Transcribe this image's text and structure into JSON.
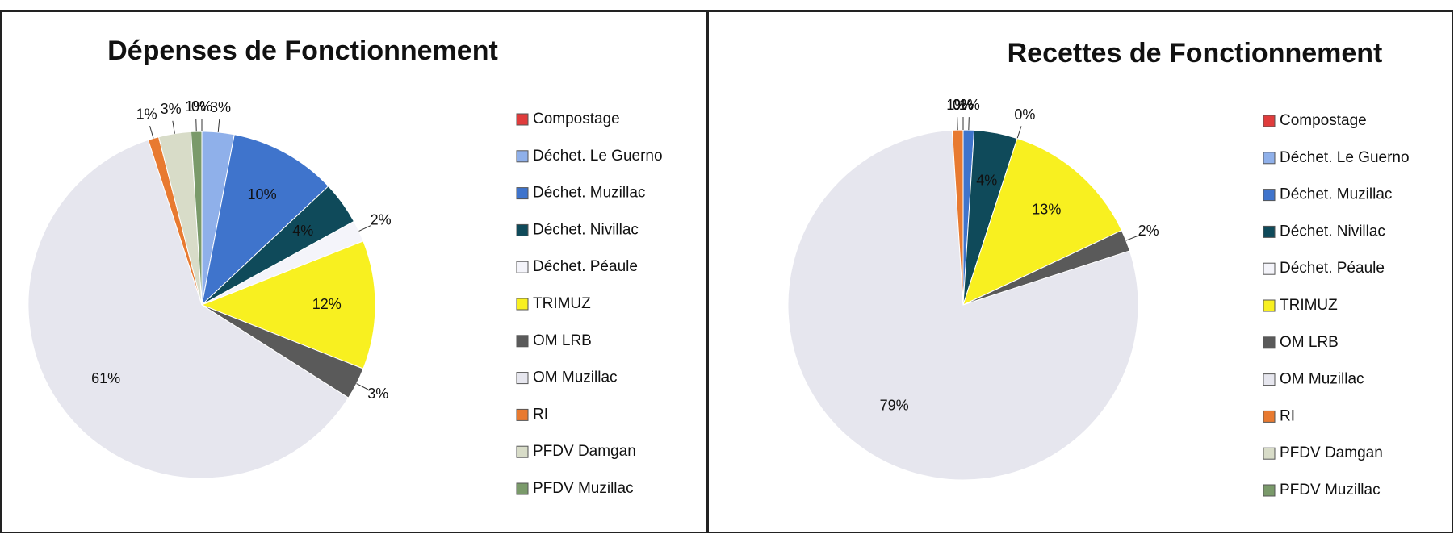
{
  "chart_data": [
    {
      "type": "pie",
      "title": "Dépenses de Fonctionnement",
      "categories": [
        "Compostage",
        "Déchet. Le Guerno",
        "Déchet. Muzillac",
        "Déchet. Nivillac",
        "Déchet. Péaule",
        "TRIMUZ",
        "OM LRB",
        "OM Muzillac",
        "RI",
        "PFDV Damgan",
        "PFDV Muzillac"
      ],
      "values": [
        0,
        3,
        10,
        4,
        2,
        12,
        3,
        61,
        1,
        3,
        1
      ],
      "value_labels": [
        "0%",
        "3%",
        "10%",
        "4%",
        "2%",
        "12%",
        "3%",
        "61%",
        "1%",
        "3%",
        "1%"
      ],
      "colors": [
        "#e03c3c",
        "#8fb0ea",
        "#3f74cc",
        "#0f4a5a",
        "#f4f4fa",
        "#f8f020",
        "#5a5a5a",
        "#e6e6ee",
        "#e87a30",
        "#d8dcc8",
        "#7a9a6a"
      ],
      "legend": "right"
    },
    {
      "type": "pie",
      "title": "Recettes de Fonctionnement",
      "categories": [
        "Compostage",
        "Déchet. Le Guerno",
        "Déchet. Muzillac",
        "Déchet. Nivillac",
        "Déchet. Péaule",
        "TRIMUZ",
        "OM LRB",
        "OM Muzillac",
        "RI",
        "PFDV Damgan",
        "PFDV Muzillac"
      ],
      "values": [
        0,
        0,
        1,
        4,
        0,
        13,
        2,
        79,
        1,
        0,
        0
      ],
      "value_labels": [
        "0%",
        "0%",
        "1%",
        "4%",
        "0%",
        "13%",
        "2%",
        "79%",
        "1%",
        "0%",
        "0%"
      ],
      "colors": [
        "#e03c3c",
        "#8fb0ea",
        "#3f74cc",
        "#0f4a5a",
        "#f4f4fa",
        "#f8f020",
        "#5a5a5a",
        "#e6e6ee",
        "#e87a30",
        "#d8dcc8",
        "#7a9a6a"
      ],
      "legend": "right"
    }
  ]
}
